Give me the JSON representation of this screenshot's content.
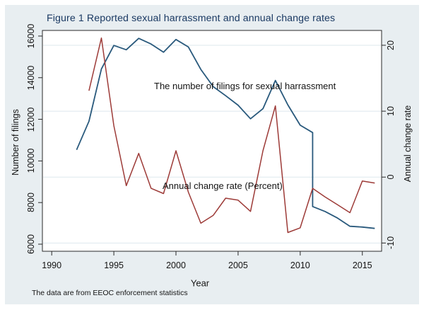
{
  "figure": {
    "title": "Figure 1 Reported sexual harrassment and annual change rates",
    "note": "The data are from EEOC enforcement statistics",
    "x_axis_title": "Year",
    "left_axis_title": "Number of filings",
    "right_axis_title": "Annual change rate",
    "annotations": {
      "filings_label": "The number of filings for sexual harrassment",
      "rate_label": "Annual change rate (Percent)"
    }
  },
  "colors": {
    "graph_background": "#e8eef1",
    "plot_background": "#ffffff",
    "gridline": "#dde8ee",
    "frame": "#2a2a2a",
    "title_text": "#1b3a63",
    "filings_line": "#29597c",
    "rate_line": "#9d3b38"
  },
  "chart_data": {
    "type": "line",
    "title": "Figure 1 Reported sexual harrassment and annual change rates",
    "note": "The data are from EEOC enforcement statistics",
    "x_axis": {
      "label": "Year",
      "ticks": [
        1990,
        1995,
        2000,
        2005,
        2010,
        2015
      ],
      "range": [
        1989.25,
        2016.55
      ]
    },
    "left_axis": {
      "label": "Number of filings",
      "ticks": [
        6000,
        8000,
        10000,
        12000,
        14000,
        16000
      ],
      "range": [
        5660,
        16270
      ]
    },
    "right_axis": {
      "label": "Annual change rate",
      "ticks": [
        -10,
        0,
        10,
        20
      ],
      "range": [
        -11.25,
        22.25
      ]
    },
    "gridlines_at_right_ticks": true,
    "legend_position": "none",
    "series": [
      {
        "name": "The number of filings for sexual harrassment",
        "axis": "left",
        "color": "#29597c",
        "width": 1.8,
        "points": [
          [
            1992,
            10532
          ],
          [
            1993,
            11908
          ],
          [
            1994,
            14420
          ],
          [
            1995,
            15549
          ],
          [
            1996,
            15342
          ],
          [
            1997,
            15889
          ],
          [
            1998,
            15618
          ],
          [
            1999,
            15222
          ],
          [
            2000,
            15836
          ],
          [
            2001,
            15475
          ],
          [
            2002,
            14396
          ],
          [
            2003,
            13566
          ],
          [
            2004,
            13136
          ],
          [
            2005,
            12679
          ],
          [
            2006,
            12025
          ],
          [
            2007,
            12510
          ],
          [
            2008,
            13867
          ],
          [
            2009,
            12696
          ],
          [
            2010,
            11717
          ],
          [
            2011,
            11364
          ],
          [
            2011,
            7809
          ],
          [
            2012,
            7571
          ],
          [
            2013,
            7256
          ],
          [
            2014,
            6862
          ],
          [
            2015,
            6822
          ],
          [
            2016,
            6758
          ]
        ]
      },
      {
        "name": "Annual change rate (Percent)",
        "axis": "right",
        "color": "#9d3b38",
        "width": 1.5,
        "points": [
          [
            1993,
            13.1
          ],
          [
            1994,
            21.1
          ],
          [
            1995,
            7.8
          ],
          [
            1996,
            -1.3
          ],
          [
            1997,
            3.6
          ],
          [
            1998,
            -1.7
          ],
          [
            1999,
            -2.5
          ],
          [
            2000,
            4.0
          ],
          [
            2001,
            -2.3
          ],
          [
            2002,
            -7.0
          ],
          [
            2003,
            -5.8
          ],
          [
            2004,
            -3.2
          ],
          [
            2005,
            -3.5
          ],
          [
            2006,
            -5.2
          ],
          [
            2007,
            4.0
          ],
          [
            2008,
            10.8
          ],
          [
            2009,
            -8.4
          ],
          [
            2010,
            -7.7
          ],
          [
            2011,
            -1.7
          ],
          [
            2012,
            -3.0
          ],
          [
            2013,
            -4.2
          ],
          [
            2014,
            -5.4
          ],
          [
            2015,
            -0.6
          ],
          [
            2016,
            -0.9
          ]
        ]
      }
    ]
  }
}
